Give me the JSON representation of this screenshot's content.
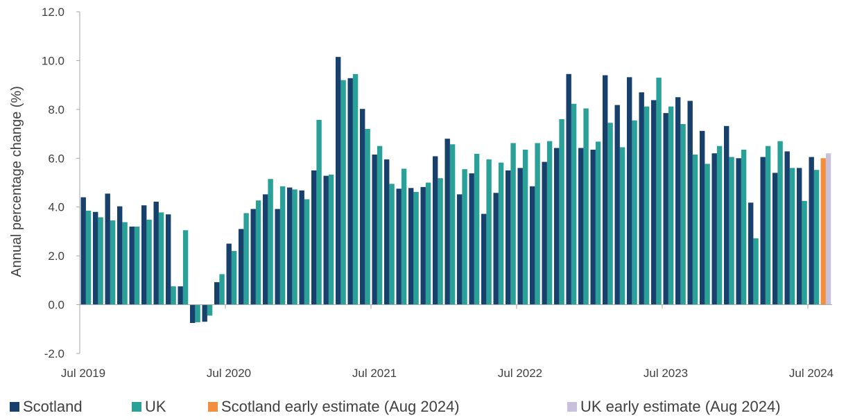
{
  "chart_data": {
    "type": "bar",
    "ylabel": "Annual percentage change (%)",
    "ylim": [
      -2.0,
      12.0
    ],
    "yticks": [
      "-2.0",
      "0.0",
      "2.0",
      "4.0",
      "6.0",
      "8.0",
      "10.0",
      "12.0"
    ],
    "xtick_labels": [
      "Jul 2019",
      "Jul 2020",
      "Jul 2021",
      "Jul 2022",
      "Jul 2023",
      "Jul 2024"
    ],
    "legend": [
      "Scotland",
      "UK",
      "Scotland early estimate (Aug 2024)",
      "UK early estimate (Aug 2024)"
    ],
    "colors": {
      "Scotland": "#17406d",
      "UK": "#2aa198",
      "Scotland early estimate (Aug 2024)": "#f28e3c",
      "UK early estimate (Aug 2024)": "#c9c0dc",
      "axis": "#a6a6a6",
      "text": "#404040"
    },
    "categories": [
      "Jul 2019",
      "Aug 2019",
      "Sep 2019",
      "Oct 2019",
      "Nov 2019",
      "Dec 2019",
      "Jan 2020",
      "Feb 2020",
      "Mar 2020",
      "Apr 2020",
      "May 2020",
      "Jun 2020",
      "Jul 2020",
      "Aug 2020",
      "Sep 2020",
      "Oct 2020",
      "Nov 2020",
      "Dec 2020",
      "Jan 2021",
      "Feb 2021",
      "Mar 2021",
      "Apr 2021",
      "May 2021",
      "Jun 2021",
      "Jul 2021",
      "Aug 2021",
      "Sep 2021",
      "Oct 2021",
      "Nov 2021",
      "Dec 2021",
      "Jan 2022",
      "Feb 2022",
      "Mar 2022",
      "Apr 2022",
      "May 2022",
      "Jun 2022",
      "Jul 2022",
      "Aug 2022",
      "Sep 2022",
      "Oct 2022",
      "Nov 2022",
      "Dec 2022",
      "Jan 2023",
      "Feb 2023",
      "Mar 2023",
      "Apr 2023",
      "May 2023",
      "Jun 2023",
      "Jul 2023",
      "Aug 2023",
      "Sep 2023",
      "Oct 2023",
      "Nov 2023",
      "Dec 2023",
      "Jan 2024",
      "Feb 2024",
      "Mar 2024",
      "Apr 2024",
      "May 2024",
      "Jun 2024",
      "Jul 2024",
      "Aug 2024"
    ],
    "series": [
      {
        "name": "Scotland",
        "values": [
          4.4,
          3.8,
          4.55,
          4.03,
          3.2,
          4.07,
          4.22,
          3.7,
          0.75,
          -0.75,
          -0.7,
          0.92,
          2.5,
          3.1,
          3.92,
          4.52,
          3.92,
          4.8,
          4.68,
          5.5,
          5.28,
          10.15,
          9.28,
          8.02,
          6.15,
          5.95,
          4.75,
          4.78,
          4.82,
          6.08,
          6.8,
          4.52,
          5.38,
          3.72,
          4.58,
          5.5,
          5.6,
          4.85,
          5.85,
          6.42,
          9.45,
          6.42,
          6.35,
          9.4,
          8.18,
          9.32,
          8.7,
          8.38,
          7.85,
          8.5,
          8.35,
          7.12,
          6.2,
          7.32,
          6.0,
          4.18,
          6.05,
          5.4,
          6.28,
          5.6,
          6.05,
          null
        ]
      },
      {
        "name": "UK",
        "values": [
          3.85,
          3.58,
          3.45,
          3.38,
          3.2,
          3.48,
          3.78,
          0.75,
          3.05,
          -0.72,
          -0.45,
          1.25,
          2.2,
          3.75,
          4.27,
          5.15,
          4.85,
          4.72,
          4.32,
          7.57,
          5.33,
          9.2,
          9.45,
          7.2,
          6.5,
          4.95,
          5.57,
          4.62,
          5.0,
          5.18,
          6.57,
          5.55,
          6.18,
          5.95,
          5.82,
          6.62,
          6.35,
          6.62,
          6.7,
          7.6,
          8.23,
          8.04,
          6.68,
          7.45,
          6.45,
          7.55,
          8.12,
          9.3,
          8.12,
          7.4,
          6.15,
          5.77,
          6.5,
          6.05,
          6.35,
          2.72,
          6.5,
          6.7,
          5.6,
          4.25,
          5.52,
          null
        ]
      },
      {
        "name": "Scotland early estimate (Aug 2024)",
        "values": [
          null,
          null,
          null,
          null,
          null,
          null,
          null,
          null,
          null,
          null,
          null,
          null,
          null,
          null,
          null,
          null,
          null,
          null,
          null,
          null,
          null,
          null,
          null,
          null,
          null,
          null,
          null,
          null,
          null,
          null,
          null,
          null,
          null,
          null,
          null,
          null,
          null,
          null,
          null,
          null,
          null,
          null,
          null,
          null,
          null,
          null,
          null,
          null,
          null,
          null,
          null,
          null,
          null,
          null,
          null,
          null,
          null,
          null,
          null,
          null,
          null,
          6.0
        ]
      },
      {
        "name": "UK early estimate (Aug 2024)",
        "values": [
          null,
          null,
          null,
          null,
          null,
          null,
          null,
          null,
          null,
          null,
          null,
          null,
          null,
          null,
          null,
          null,
          null,
          null,
          null,
          null,
          null,
          null,
          null,
          null,
          null,
          null,
          null,
          null,
          null,
          null,
          null,
          null,
          null,
          null,
          null,
          null,
          null,
          null,
          null,
          null,
          null,
          null,
          null,
          null,
          null,
          null,
          null,
          null,
          null,
          null,
          null,
          null,
          null,
          null,
          null,
          null,
          null,
          null,
          null,
          null,
          null,
          6.2
        ]
      }
    ],
    "grid": false,
    "legend_position": "bottom"
  }
}
